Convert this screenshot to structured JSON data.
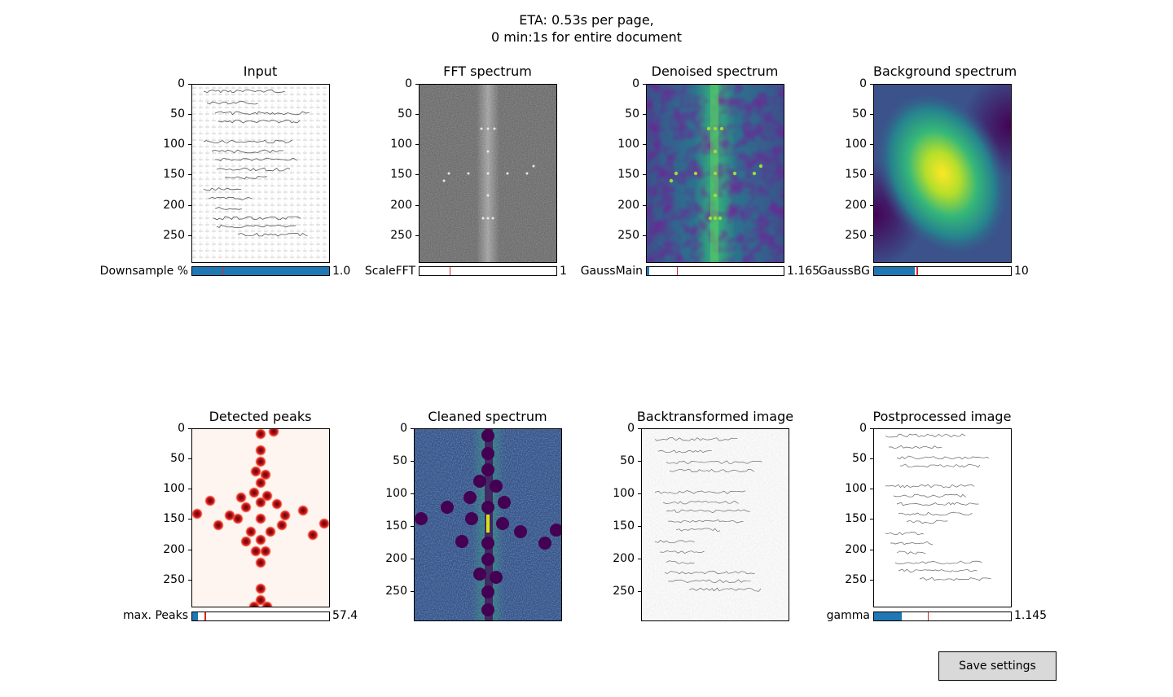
{
  "header": {
    "line1": "ETA: 0.53s per page,",
    "line2": "0 min:1s for entire document"
  },
  "y_ticks_300": [
    "0",
    "50",
    "100",
    "150",
    "200",
    "250"
  ],
  "panels": {
    "input": {
      "title": "Input"
    },
    "fft": {
      "title": "FFT spectrum"
    },
    "denoised": {
      "title": "Denoised spectrum"
    },
    "background": {
      "title": "Background spectrum"
    },
    "peaks": {
      "title": "Detected peaks"
    },
    "cleaned": {
      "title": "Cleaned spectrum"
    },
    "backtransformed": {
      "title": "Backtransformed image"
    },
    "postprocessed": {
      "title": "Postprocessed image"
    }
  },
  "sliders": {
    "downsample": {
      "label": "Downsample %",
      "value": "1.0",
      "fill_fraction": 1.0,
      "init_fraction": 0.22
    },
    "scalefft": {
      "label": "ScaleFFT",
      "value": "1",
      "fill_fraction": 0.0,
      "init_fraction": 0.22
    },
    "gaussmain": {
      "label": "GaussMain",
      "value": "1.165",
      "fill_fraction": 0.015,
      "init_fraction": 0.22
    },
    "gaussbg": {
      "label": "GaussBG",
      "value": "10",
      "fill_fraction": 0.3,
      "init_fraction": 0.31
    },
    "maxpeaks": {
      "label": "max. Peaks",
      "value": "57.4",
      "fill_fraction": 0.04,
      "init_fraction": 0.09
    },
    "gamma": {
      "label": "gamma",
      "value": "1.145",
      "fill_fraction": 0.2,
      "init_fraction": 0.39
    }
  },
  "save_button": {
    "label": "Save settings"
  },
  "colors": {
    "slider_fill": "#1f77b4",
    "slider_init": "#d62728",
    "button_bg": "#d9d9d9",
    "viridis_dark": "#440154",
    "viridis_mid": "#21918c",
    "viridis_bright": "#fde725"
  }
}
